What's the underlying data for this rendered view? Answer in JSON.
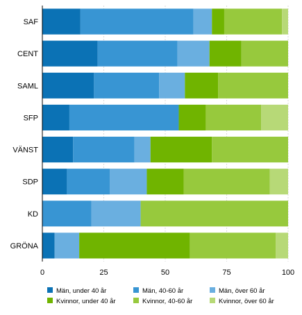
{
  "chart_data": {
    "type": "bar",
    "orientation": "horizontal",
    "stacked": true,
    "categories": [
      "SAF",
      "CENT",
      "SAML",
      "SFP",
      "VÄNST",
      "SDP",
      "KD",
      "GRÖNA"
    ],
    "series": [
      {
        "name": "Män, under 40 år",
        "color": "#0b72b5",
        "values": [
          15.5,
          22.5,
          21,
          11,
          12.5,
          10,
          0,
          5
        ]
      },
      {
        "name": "Män, 40-60 år",
        "color": "#3895d3",
        "values": [
          46,
          32.5,
          26.5,
          44.5,
          25,
          17.5,
          20,
          0
        ]
      },
      {
        "name": "Män, över 60 år",
        "color": "#6aafe0",
        "values": [
          7.5,
          13,
          10.5,
          0,
          6.5,
          15,
          20,
          10
        ]
      },
      {
        "name": "Kvinnor, under 40 år",
        "color": "#70b400",
        "values": [
          5,
          13,
          13.5,
          11,
          25,
          15,
          0,
          45
        ]
      },
      {
        "name": "Kvinnor, 40-60 år",
        "color": "#97c93d",
        "values": [
          23.5,
          19,
          28.5,
          22.5,
          31,
          35,
          60,
          35
        ]
      },
      {
        "name": "Kvinnor, över 60 år",
        "color": "#b7d977",
        "values": [
          2.5,
          0,
          0,
          11,
          0,
          7.5,
          0,
          5
        ]
      }
    ],
    "xlim": [
      0,
      100
    ],
    "xticks": [
      "0",
      "25",
      "50",
      "75",
      "100"
    ],
    "grid": true,
    "legend_position": "bottom"
  }
}
